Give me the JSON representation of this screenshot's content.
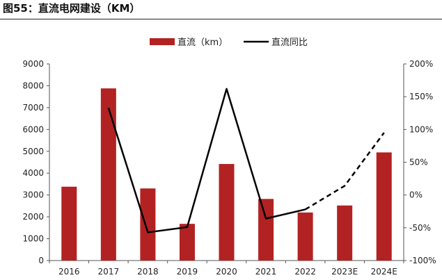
{
  "figure": {
    "title": "图55：直流电网建设（KM）"
  },
  "colors": {
    "bar": "#b22222",
    "line": "#000000",
    "axis": "#555555"
  },
  "chart_data": {
    "type": "bar",
    "categories": [
      "2016",
      "2017",
      "2018",
      "2019",
      "2020",
      "2021",
      "2022",
      "2023E",
      "2024E"
    ],
    "series": [
      {
        "name": "直流（km）",
        "type": "bar",
        "axis": "left",
        "values": [
          3380,
          7880,
          3300,
          1680,
          4420,
          2820,
          2200,
          2520,
          4950
        ]
      },
      {
        "name": "直流同比",
        "type": "line",
        "axis": "right",
        "unit": "%",
        "values": [
          null,
          133,
          -57,
          -49,
          162,
          -36,
          -22,
          14,
          95
        ],
        "dashed_from_index": 6
      }
    ],
    "y_left": {
      "ylim": [
        0,
        9000
      ],
      "ticks": [
        "0",
        "1000",
        "2000",
        "3000",
        "4000",
        "5000",
        "6000",
        "7000",
        "8000",
        "9000"
      ]
    },
    "y_right": {
      "ylim": [
        -100,
        200
      ],
      "ticks": [
        "-100%",
        "-50%",
        "0%",
        "50%",
        "100%",
        "150%",
        "200%"
      ]
    },
    "legend_position": "top-center",
    "grid": false
  }
}
